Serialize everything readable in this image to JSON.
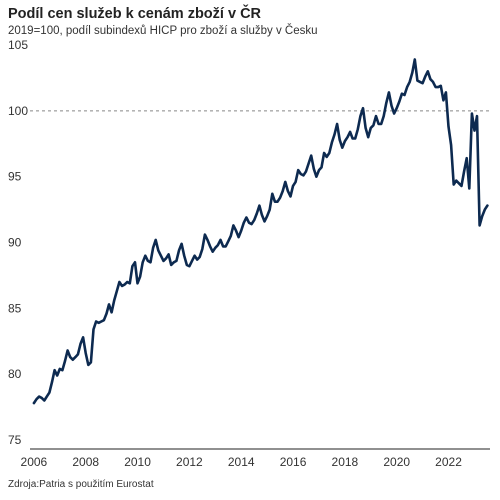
{
  "chart_data": {
    "type": "line",
    "title": "Podíl cen služeb k cenám zboží v ČR",
    "subtitle": "2019=100, podíl subindexů HICP pro zboží a služby v Česku",
    "source": "Zdroja:Patria s použitím Eurostat",
    "xlabel": "",
    "ylabel": "",
    "xlim": [
      2005.85,
      2023.6
    ],
    "ylim": [
      75,
      105
    ],
    "x_ticks": [
      "2006",
      "2008",
      "2010",
      "2012",
      "2014",
      "2016",
      "2018",
      "2020",
      "2022"
    ],
    "y_ticks": [
      "75",
      "80",
      "85",
      "90",
      "95",
      "100",
      "105"
    ],
    "reference_line": {
      "y": 100,
      "style": "dashed"
    },
    "grid": false,
    "legend": "none",
    "line_color": "#0d2a50",
    "series": [
      {
        "x": [
          2006.0,
          2006.1,
          2006.2,
          2006.3,
          2006.4,
          2006.5,
          2006.6,
          2006.7,
          2006.8,
          2006.9,
          2007.0,
          2007.1,
          2007.2,
          2007.3,
          2007.4,
          2007.5,
          2007.6,
          2007.7,
          2007.8,
          2007.9,
          2008.0,
          2008.1,
          2008.2,
          2008.3,
          2008.4,
          2008.5,
          2008.6,
          2008.7,
          2008.8,
          2008.9,
          2009.0,
          2009.1,
          2009.2,
          2009.3,
          2009.4,
          2009.5,
          2009.6,
          2009.7,
          2009.8,
          2009.9,
          2010.0,
          2010.1,
          2010.2,
          2010.3,
          2010.4,
          2010.5,
          2010.6,
          2010.7,
          2010.8,
          2010.9,
          2011.0,
          2011.1,
          2011.2,
          2011.3,
          2011.4,
          2011.5,
          2011.6,
          2011.7,
          2011.8,
          2011.9,
          2012.0,
          2012.1,
          2012.2,
          2012.3,
          2012.4,
          2012.5,
          2012.6,
          2012.7,
          2012.8,
          2012.9,
          2013.0,
          2013.1,
          2013.2,
          2013.3,
          2013.4,
          2013.5,
          2013.6,
          2013.7,
          2013.8,
          2013.9,
          2014.0,
          2014.1,
          2014.2,
          2014.3,
          2014.4,
          2014.5,
          2014.6,
          2014.7,
          2014.8,
          2014.9,
          2015.0,
          2015.1,
          2015.2,
          2015.3,
          2015.4,
          2015.5,
          2015.6,
          2015.7,
          2015.8,
          2015.9,
          2016.0,
          2016.1,
          2016.2,
          2016.3,
          2016.4,
          2016.5,
          2016.6,
          2016.7,
          2016.8,
          2016.9,
          2017.0,
          2017.1,
          2017.2,
          2017.3,
          2017.4,
          2017.5,
          2017.6,
          2017.7,
          2017.8,
          2017.9,
          2018.0,
          2018.1,
          2018.2,
          2018.3,
          2018.4,
          2018.5,
          2018.6,
          2018.7,
          2018.8,
          2018.9,
          2019.0,
          2019.1,
          2019.2,
          2019.3,
          2019.4,
          2019.5,
          2019.6,
          2019.7,
          2019.8,
          2019.9,
          2020.0,
          2020.1,
          2020.2,
          2020.3,
          2020.4,
          2020.5,
          2020.6,
          2020.7,
          2020.8,
          2020.9,
          2021.0,
          2021.1,
          2021.2,
          2021.3,
          2021.4,
          2021.5,
          2021.6,
          2021.7,
          2021.8,
          2021.9,
          2022.0,
          2022.1,
          2022.2,
          2022.3,
          2022.4,
          2022.5,
          2022.6,
          2022.7,
          2022.8,
          2022.9,
          2023.0,
          2023.1,
          2023.2,
          2023.3,
          2023.4,
          2023.5
        ],
        "values": [
          77.8,
          78.1,
          78.3,
          78.2,
          78.0,
          78.3,
          78.6,
          79.4,
          80.3,
          79.9,
          80.4,
          80.3,
          81.0,
          81.8,
          81.3,
          81.1,
          81.3,
          81.5,
          82.3,
          82.8,
          81.6,
          80.7,
          80.9,
          83.4,
          84.0,
          83.9,
          84.0,
          84.1,
          84.6,
          85.3,
          84.7,
          85.6,
          86.3,
          87.0,
          86.7,
          86.8,
          87.0,
          86.9,
          88.2,
          88.5,
          86.9,
          87.4,
          88.5,
          89.0,
          88.6,
          88.5,
          89.6,
          90.2,
          89.4,
          89.0,
          88.6,
          88.8,
          89.1,
          88.3,
          88.5,
          88.6,
          89.4,
          89.9,
          89.0,
          88.3,
          88.2,
          88.6,
          89.0,
          88.7,
          88.9,
          89.5,
          90.6,
          90.2,
          89.7,
          89.3,
          89.6,
          89.8,
          90.2,
          89.7,
          89.7,
          90.1,
          90.5,
          91.3,
          90.9,
          90.4,
          90.9,
          91.5,
          91.9,
          91.5,
          91.4,
          91.7,
          92.2,
          92.8,
          92.1,
          91.6,
          92.0,
          92.5,
          93.7,
          93.1,
          93.1,
          93.4,
          93.9,
          94.6,
          93.9,
          93.5,
          94.3,
          94.6,
          95.5,
          95.2,
          95.1,
          95.4,
          96.0,
          96.6,
          95.6,
          95.0,
          95.5,
          95.7,
          96.8,
          96.5,
          96.8,
          97.6,
          98.2,
          99.0,
          97.8,
          97.2,
          97.7,
          98.0,
          98.4,
          97.9,
          97.9,
          98.6,
          99.6,
          100.2,
          98.7,
          98.0,
          98.7,
          98.9,
          99.6,
          99.0,
          99.0,
          99.6,
          100.6,
          101.4,
          100.4,
          99.8,
          100.2,
          100.7,
          101.3,
          101.2,
          101.8,
          102.2,
          102.9,
          103.9,
          102.3,
          102.2,
          102.1,
          102.6,
          103.0,
          102.4,
          102.2,
          101.8,
          101.8,
          101.9,
          100.8,
          101.4,
          98.8,
          97.4,
          94.4,
          94.7,
          94.5,
          94.3,
          95.4,
          96.4,
          94.1,
          99.8,
          98.5,
          99.6,
          91.3,
          92.0,
          92.5,
          92.8
        ]
      }
    ]
  }
}
